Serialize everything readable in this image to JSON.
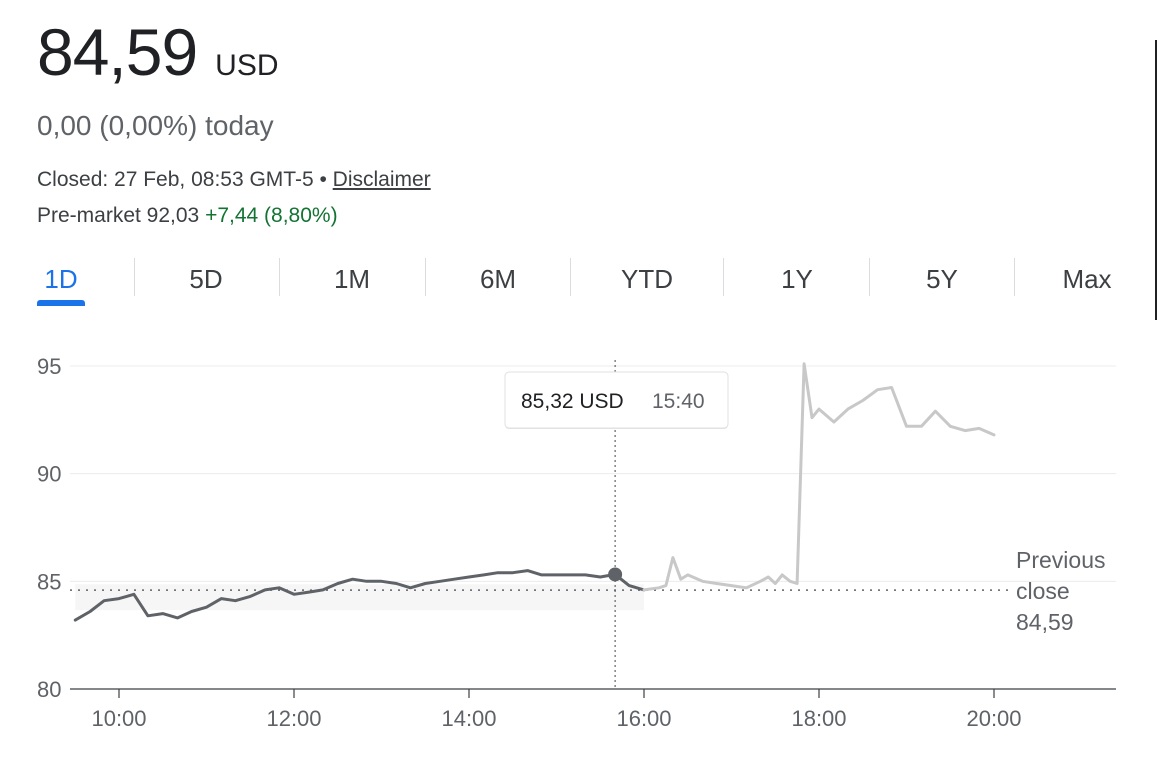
{
  "header": {
    "price": "84,59",
    "currency": "USD",
    "change_text": "0,00 (0,00%) today",
    "closed_text": "Closed: 27 Feb, 08:53 GMT-5 • ",
    "disclaimer": "Disclaimer",
    "premarket_label": "Pre-market 92,03 ",
    "premarket_change": "+7,44 (8,80%)"
  },
  "tabs": [
    "1D",
    "5D",
    "1M",
    "6M",
    "YTD",
    "1Y",
    "5Y",
    "Max"
  ],
  "active_tab": "1D",
  "colors": {
    "accent": "#1a73e8",
    "positive": "#137333",
    "line": "#5f6368",
    "after_hours": "#c8c8c8"
  },
  "chart_data": {
    "type": "line",
    "ylim": [
      80,
      95
    ],
    "yticks": [
      "95",
      "90",
      "85",
      "80"
    ],
    "ytick_values": [
      95,
      90,
      85,
      80
    ],
    "xticks": [
      "10:00",
      "12:00",
      "14:00",
      "16:00",
      "18:00",
      "20:00"
    ],
    "xtick_values": [
      10,
      12,
      14,
      16,
      18,
      20
    ],
    "previous_close": {
      "label_lines": [
        "Previous",
        "close",
        "84,59"
      ],
      "value": 84.59
    },
    "tooltip": {
      "value": "85,32 USD",
      "time": "15:40",
      "x": 15.67,
      "y": 85.32
    },
    "series": [
      {
        "segment": "regular",
        "x": [
          9.5,
          9.67,
          9.83,
          10.0,
          10.17,
          10.33,
          10.5,
          10.67,
          10.83,
          11.0,
          11.17,
          11.33,
          11.5,
          11.67,
          11.83,
          12.0,
          12.17,
          12.33,
          12.5,
          12.67,
          12.83,
          13.0,
          13.17,
          13.33,
          13.5,
          13.67,
          13.83,
          14.0,
          14.17,
          14.33,
          14.5,
          14.67,
          14.83,
          15.0,
          15.17,
          15.33,
          15.5,
          15.67,
          15.83,
          16.0
        ],
        "y": [
          83.2,
          83.6,
          84.1,
          84.2,
          84.4,
          83.4,
          83.5,
          83.3,
          83.6,
          83.8,
          84.2,
          84.1,
          84.3,
          84.6,
          84.7,
          84.4,
          84.5,
          84.6,
          84.9,
          85.1,
          85.0,
          85.0,
          84.9,
          84.7,
          84.9,
          85.0,
          85.1,
          85.2,
          85.3,
          85.4,
          85.4,
          85.5,
          85.3,
          85.3,
          85.3,
          85.3,
          85.2,
          85.32,
          84.8,
          84.6
        ]
      },
      {
        "segment": "after-hours",
        "x": [
          16.0,
          16.17,
          16.25,
          16.33,
          16.42,
          16.5,
          16.67,
          16.83,
          17.0,
          17.17,
          17.33,
          17.42,
          17.5,
          17.58,
          17.67,
          17.75,
          17.83,
          17.92,
          18.0,
          18.17,
          18.33,
          18.5,
          18.67,
          18.83,
          19.0,
          19.17,
          19.33,
          19.5,
          19.67,
          19.83,
          20.0
        ],
        "y": [
          84.6,
          84.7,
          84.8,
          86.1,
          85.1,
          85.3,
          85.0,
          84.9,
          84.8,
          84.7,
          85.0,
          85.2,
          84.9,
          85.3,
          85.0,
          84.9,
          95.1,
          92.6,
          93.0,
          92.4,
          93.0,
          93.4,
          93.9,
          94.0,
          92.2,
          92.2,
          92.9,
          92.2,
          92.0,
          92.1,
          91.8
        ]
      }
    ]
  }
}
